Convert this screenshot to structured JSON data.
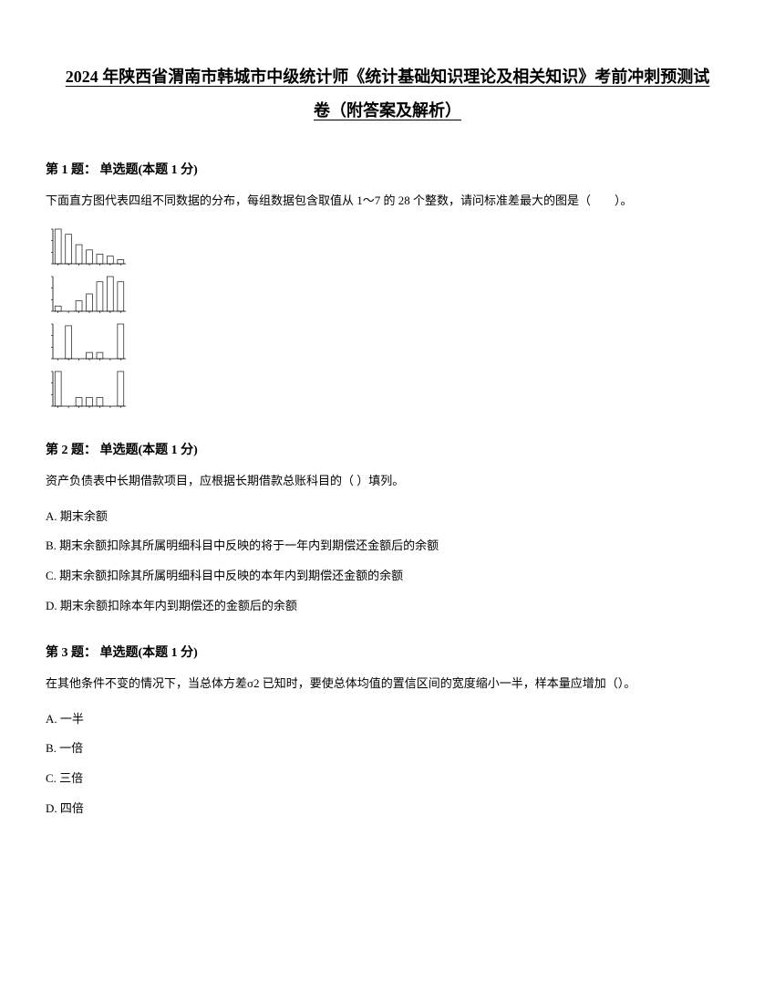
{
  "title_line1": "2024 年陕西省渭南市韩城市中级统计师《统计基础知识理论及相关知识》考前冲刺预测试",
  "title_line2": "卷（附答案及解析）",
  "q1": {
    "header": "第 1 题： 单选题(本题 1 分)",
    "text": "下面直方图代表四组不同数据的分布，每组数据包含取值从 1～7 的 28 个整数，请问标准差最大的图是（　　）。",
    "histograms": {
      "width": 90,
      "height": 50,
      "bar_color": "#333333",
      "axis_color": "#000000",
      "background": "#ffffff",
      "charts": [
        {
          "bars": [
            1.0,
            0.85,
            0.55,
            0.4,
            0.28,
            0.22,
            0.12
          ]
        },
        {
          "bars": [
            0.15,
            0.0,
            0.3,
            0.5,
            0.85,
            1.0,
            0.85
          ]
        },
        {
          "bars": [
            0.0,
            0.95,
            0.0,
            0.18,
            0.18,
            0.0,
            1.0
          ]
        },
        {
          "bars": [
            1.0,
            0.0,
            0.25,
            0.25,
            0.25,
            0.0,
            1.0
          ]
        }
      ]
    }
  },
  "q2": {
    "header": "第 2 题： 单选题(本题 1 分)",
    "text": "资产负债表中长期借款项目，应根据长期借款总账科目的（ ）填列。",
    "options": [
      "A. 期末余额",
      "B. 期末余额扣除其所属明细科目中反映的将于一年内到期偿还金额后的余额",
      "C. 期末余额扣除其所属明细科目中反映的本年内到期偿还金额的余额",
      "D. 期末余额扣除本年内到期偿还的金额后的余额"
    ]
  },
  "q3": {
    "header": "第 3 题： 单选题(本题 1 分)",
    "text": "在其他条件不变的情况下，当总体方差σ2 已知时，要使总体均值的置信区间的宽度缩小一半，样本量应增加（）。",
    "options": [
      "A. 一半",
      "B. 一倍",
      "C. 三倍",
      "D. 四倍"
    ]
  }
}
